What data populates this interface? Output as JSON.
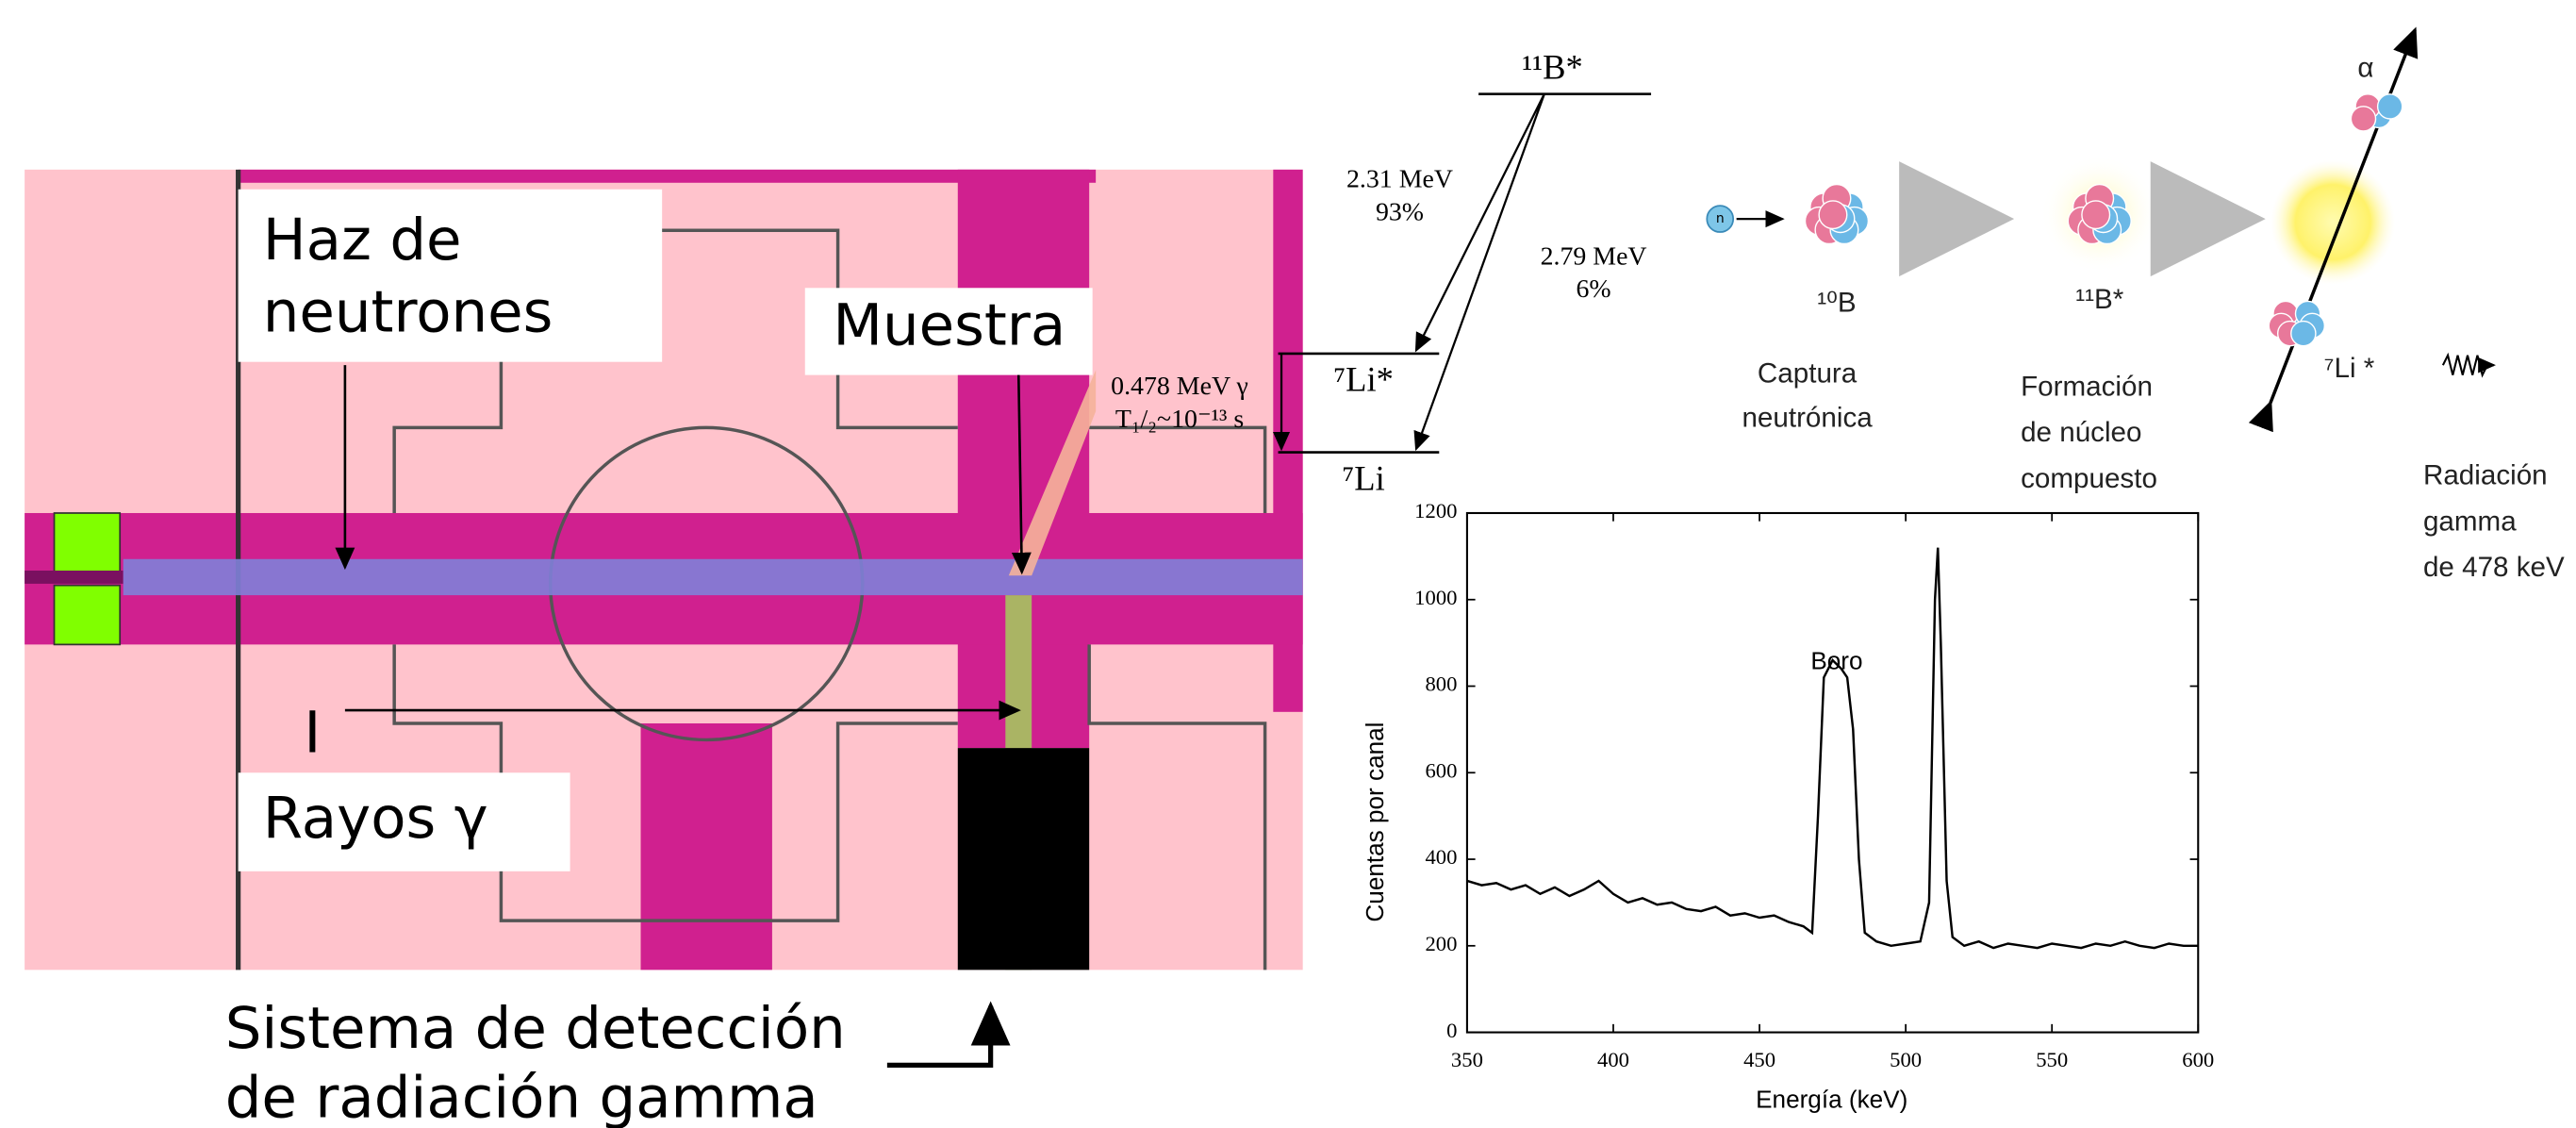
{
  "diagram": {
    "labels": {
      "beam": [
        "Haz de",
        "neutrones"
      ],
      "sample": "Muestra",
      "marker": "I",
      "gamma": "Rayos γ",
      "detector": [
        "Sistema de detección",
        "de radiación gamma"
      ]
    }
  },
  "decay_scheme": {
    "parent": "¹¹B*",
    "excited": "⁷Li*",
    "ground": "⁷Li",
    "branch_1": [
      "2.31 MeV",
      "93%"
    ],
    "branch_2": [
      "2.79 MeV",
      "6%"
    ],
    "gamma": [
      "0.478 MeV γ",
      "T₁/₂~10⁻¹³ s"
    ]
  },
  "reaction": {
    "neutron": "n",
    "target": "¹⁰B",
    "compound": "¹¹B*",
    "alpha": "α",
    "lithium": "⁷Li *",
    "steps": [
      [
        "Captura",
        "neutrónica"
      ],
      [
        "Formación",
        "de núcleo",
        "compuesto"
      ],
      [
        "Radiación",
        "gamma",
        "de 478 keV"
      ]
    ]
  },
  "spectrum": {
    "type": "line",
    "annotation": "Boro",
    "x_label": "Energía (keV)",
    "y_label": "Cuentas por canal",
    "color": "#000000",
    "x": [
      350,
      355,
      360,
      365,
      370,
      375,
      380,
      385,
      390,
      395,
      400,
      405,
      410,
      415,
      420,
      425,
      430,
      435,
      440,
      445,
      450,
      455,
      460,
      465,
      468,
      470,
      472,
      475,
      478,
      480,
      482,
      484,
      486,
      490,
      495,
      500,
      505,
      508,
      510,
      511,
      512,
      514,
      516,
      520,
      525,
      530,
      535,
      540,
      545,
      550,
      555,
      560,
      565,
      570,
      575,
      580,
      585,
      590,
      595,
      600
    ],
    "values": [
      350,
      340,
      345,
      330,
      340,
      320,
      335,
      315,
      330,
      350,
      320,
      300,
      310,
      295,
      300,
      285,
      280,
      290,
      270,
      275,
      265,
      270,
      255,
      245,
      230,
      500,
      820,
      860,
      840,
      820,
      700,
      400,
      230,
      210,
      200,
      205,
      210,
      300,
      1000,
      1120,
      900,
      350,
      220,
      200,
      210,
      195,
      205,
      200,
      195,
      205,
      200,
      195,
      205,
      200,
      210,
      200,
      195,
      205,
      200,
      200
    ],
    "xlim": [
      350,
      600
    ],
    "ylim": [
      0,
      1200
    ],
    "xticks": [
      350,
      400,
      450,
      500,
      550,
      600
    ],
    "yticks": [
      0,
      200,
      400,
      600,
      800,
      1000,
      1200
    ]
  }
}
